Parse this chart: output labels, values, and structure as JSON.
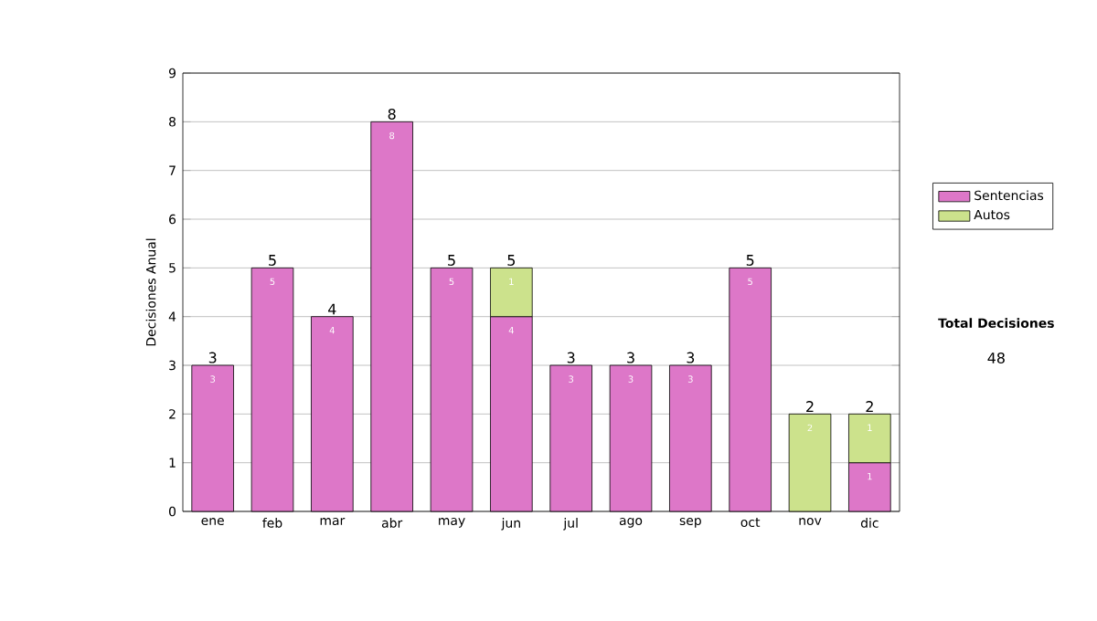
{
  "chart_data": {
    "type": "bar",
    "stacked": true,
    "ylabel": "Decisiones Anual",
    "categories": [
      "ene",
      "feb",
      "mar",
      "abr",
      "may",
      "jun",
      "jul",
      "ago",
      "sep",
      "oct",
      "nov",
      "dic"
    ],
    "series": [
      {
        "name": "Sentencias",
        "color": "#dd77c8",
        "values": [
          3,
          5,
          4,
          8,
          5,
          4,
          3,
          3,
          3,
          5,
          null,
          1
        ],
        "value_labels": [
          "3",
          "5",
          "4",
          "8",
          "5",
          "4",
          "3",
          "3",
          "3",
          "5",
          null,
          "1"
        ]
      },
      {
        "name": "Autos",
        "color": "#cce28c",
        "values": [
          null,
          null,
          null,
          null,
          null,
          1,
          null,
          null,
          null,
          null,
          2,
          1
        ],
        "value_labels": [
          null,
          null,
          null,
          null,
          null,
          "1",
          null,
          null,
          null,
          null,
          "2",
          "1"
        ]
      }
    ],
    "totals": [
      "3",
      "5",
      "4",
      "8",
      "5",
      "5",
      "3",
      "3",
      "3",
      "5",
      "2",
      "2"
    ],
    "ylim": [
      0,
      9
    ],
    "yticks": [
      0,
      1,
      2,
      3,
      4,
      5,
      6,
      7,
      8,
      9
    ],
    "grid": "y",
    "legend": "right",
    "annotations": [
      "Total Decisiones",
      "48"
    ]
  }
}
